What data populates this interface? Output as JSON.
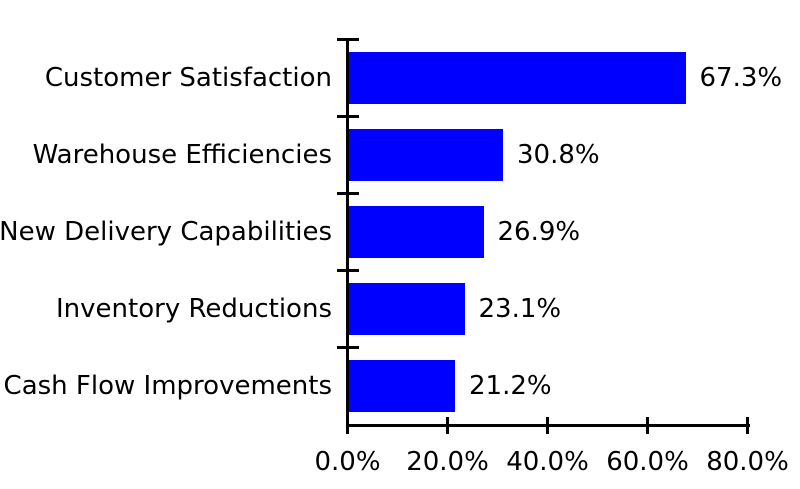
{
  "chart_data": {
    "type": "bar",
    "orientation": "horizontal",
    "title": "",
    "categories": [
      "Customer Satisfaction",
      "Warehouse Efficiencies",
      "New Delivery Capabilities",
      "Inventory Reductions",
      "Cash Flow Improvements"
    ],
    "values": [
      67.3,
      30.8,
      26.9,
      23.1,
      21.2
    ],
    "value_labels": [
      "67.3%",
      "30.8%",
      "26.9%",
      "23.1%",
      "21.2%"
    ],
    "x_tick_labels": [
      "0.0%",
      "20.0%",
      "40.0%",
      "60.0%",
      "80.0%"
    ],
    "x_tick_values": [
      0,
      20,
      40,
      60,
      80
    ],
    "xlim": [
      0,
      80
    ],
    "grid": false,
    "legend": false,
    "colors": {
      "bar": "#0000ff",
      "axis": "#000000",
      "text": "#000000",
      "background": "#ffffff"
    }
  }
}
